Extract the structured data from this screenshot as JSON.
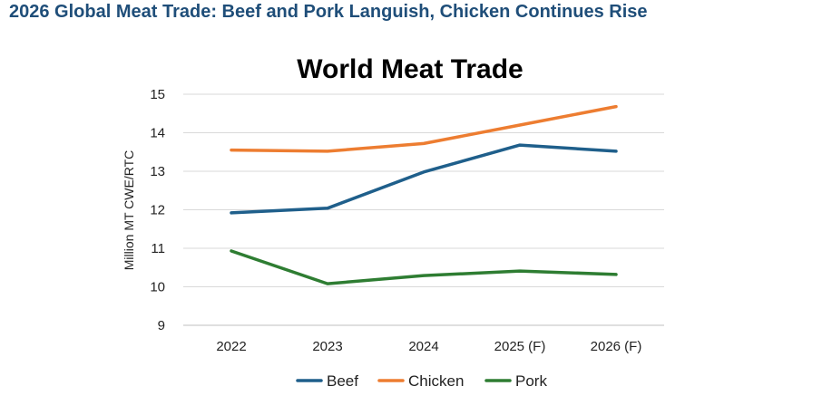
{
  "page": {
    "headline": "2026 Global Meat Trade: Beef and Pork Languish, Chicken Continues Rise"
  },
  "chart_data": {
    "type": "line",
    "title": "World Meat Trade",
    "ylabel": "Million MT CWE/RTC",
    "xlabel": "",
    "categories": [
      "2022",
      "2023",
      "2024",
      "2025 (F)",
      "2026 (F)"
    ],
    "ylim": [
      9,
      15
    ],
    "yticks": [
      9,
      10,
      11,
      12,
      13,
      14,
      15
    ],
    "grid": "horizontal",
    "legend": "bottom",
    "series": [
      {
        "name": "Beef",
        "color": "#1f5f8b",
        "values": [
          11.92,
          12.04,
          12.98,
          13.68,
          13.52
        ]
      },
      {
        "name": "Chicken",
        "color": "#ed7d31",
        "values": [
          13.55,
          13.52,
          13.72,
          14.2,
          14.68
        ]
      },
      {
        "name": "Pork",
        "color": "#2e7d32",
        "values": [
          10.93,
          10.08,
          10.29,
          10.41,
          10.32
        ]
      }
    ]
  }
}
